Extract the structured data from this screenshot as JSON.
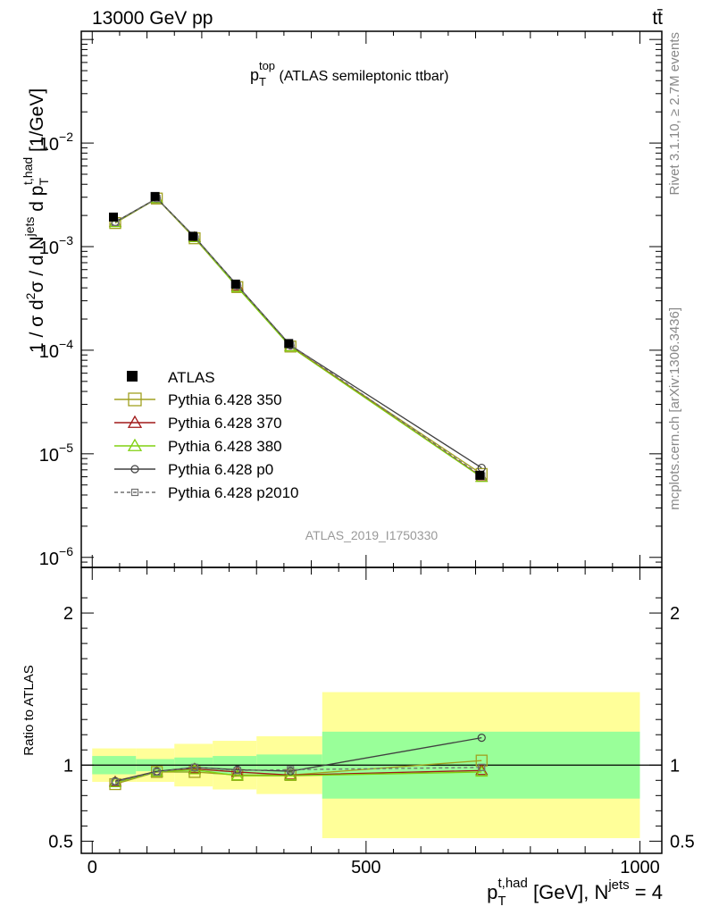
{
  "header": {
    "energy_label": "13000 GeV pp",
    "process": "tt̄"
  },
  "side": {
    "rivet": "Rivet 3.1.10, ≥ 2.7M events",
    "mcplots": "mcplots.cern.ch [arXiv:1306.3436]"
  },
  "chart_data": {
    "type": "line",
    "title": {
      "base": "p",
      "sup": "top",
      "sub": "T",
      "rest": " (ATLAS semileptonic ttbar)"
    },
    "analysis_id": "ATLAS_2019_I1750330",
    "xlabel": {
      "base": "p",
      "sup": "t,had",
      "sub": "T",
      "rest": " [GeV], N",
      "sup2": "jets",
      "tail": " = 4"
    },
    "ylabel": "1 / σ d²σ / d N^jets d p_T^t,had [1/GeV]",
    "ratio_ylabel": "Ratio to ATLAS",
    "x_range": [
      -20,
      1040
    ],
    "y_log_range": [
      8e-07,
      0.12
    ],
    "ratio_range": [
      0.42,
      2.3
    ],
    "x_ticks": [
      {
        "v": 0,
        "label": "0"
      },
      {
        "v": 500,
        "label": "500"
      },
      {
        "v": 1000,
        "label": "1000"
      }
    ],
    "y_ticks": [
      {
        "v": 0.01,
        "base": "10",
        "exp": "−2"
      },
      {
        "v": 0.001,
        "base": "10",
        "exp": "−3"
      },
      {
        "v": 0.0001,
        "base": "10",
        "exp": "−4"
      },
      {
        "v": 1e-05,
        "base": "10",
        "exp": "−5"
      },
      {
        "v": 1e-06,
        "base": "10",
        "exp": "−6"
      }
    ],
    "ratio_ticks": [
      {
        "v": 0.5,
        "label": "0.5"
      },
      {
        "v": 1,
        "label": "1"
      },
      {
        "v": 2,
        "label": "2"
      }
    ],
    "bins": [
      {
        "lo": 0,
        "hi": 80,
        "x": 42
      },
      {
        "lo": 80,
        "hi": 150,
        "x": 118
      },
      {
        "lo": 150,
        "hi": 220,
        "x": 187
      },
      {
        "lo": 220,
        "hi": 300,
        "x": 265
      },
      {
        "lo": 300,
        "hi": 420,
        "x": 362
      },
      {
        "lo": 420,
        "hi": 1000,
        "x": 711
      }
    ],
    "data": {
      "name": "ATLAS",
      "values": [
        0.00193,
        0.00305,
        0.00126,
        0.000435,
        0.000116,
        6.2e-06
      ],
      "band_inner": [
        0.06,
        0.04,
        0.05,
        0.06,
        0.07,
        0.22
      ],
      "band_outer": [
        0.11,
        0.11,
        0.14,
        0.16,
        0.19,
        0.48
      ]
    },
    "series": [
      {
        "name": "Pythia 6.428 350",
        "color": "#a0a020",
        "marker": "open-square",
        "dash": false,
        "ratio": [
          0.875,
          0.955,
          0.955,
          0.935,
          0.935,
          1.03
        ]
      },
      {
        "name": "Pythia 6.428 370",
        "color": "#a01818",
        "marker": "open-triangle",
        "dash": false,
        "ratio": [
          0.89,
          0.955,
          0.975,
          0.955,
          0.935,
          0.965
        ]
      },
      {
        "name": "Pythia 6.428 380",
        "color": "#80d010",
        "marker": "open-triangle",
        "dash": false,
        "ratio": [
          0.885,
          0.955,
          0.97,
          0.93,
          0.93,
          0.955
        ]
      },
      {
        "name": "Pythia 6.428 p0",
        "color": "#404040",
        "marker": "open-circle",
        "dash": false,
        "ratio": [
          0.895,
          0.96,
          0.985,
          0.97,
          0.96,
          1.18
        ]
      },
      {
        "name": "Pythia 6.428 p2010",
        "color": "#707070",
        "marker": "open-square-small",
        "dash": true,
        "ratio": [
          0.89,
          0.955,
          0.985,
          0.965,
          0.97,
          0.985
        ]
      }
    ]
  }
}
